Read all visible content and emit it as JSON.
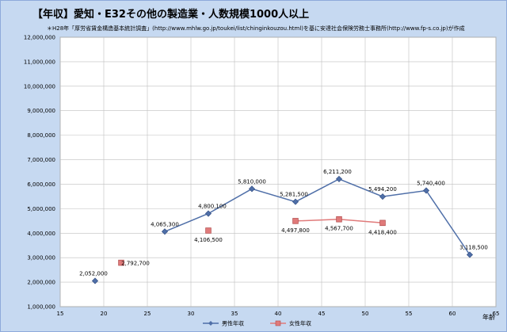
{
  "chart_data": {
    "type": "scatter",
    "title": "【年収】愛知・E32その他の製造業・人数規模1000人以上",
    "subtitle": "＊H28年「厚労省賃金構造基本統計調査」(http://www.mhlw.go.jp/toukei/list/chinginkouzou.html)を基に安達社会保険労務士事務所(http://www.fp-s.co.jp)が作成",
    "xlabel": "年齢",
    "ylabel": "",
    "xlim": [
      15,
      65
    ],
    "ylim": [
      1000000,
      12000000
    ],
    "x_ticks": [
      "15",
      "20",
      "25",
      "30",
      "35",
      "40",
      "45",
      "50",
      "55",
      "60",
      "65"
    ],
    "y_ticks": [
      "1,000,000",
      "2,000,000",
      "3,000,000",
      "4,000,000",
      "5,000,000",
      "6,000,000",
      "7,000,000",
      "8,000,000",
      "9,000,000",
      "10,000,000",
      "11,000,000",
      "12,000,000"
    ],
    "grid": true,
    "legend_position": "bottom",
    "series": [
      {
        "name": "男性年収",
        "color": "#4f6fa8",
        "marker": "diamond",
        "segments": [
          [
            {
              "x": 19,
              "y": 2052000,
              "label": "2,052,000"
            }
          ],
          [
            {
              "x": 27,
              "y": 4065300,
              "label": "4,065,300"
            },
            {
              "x": 32,
              "y": 4800100,
              "label": "4,800,100"
            },
            {
              "x": 37,
              "y": 5810000,
              "label": "5,810,000"
            },
            {
              "x": 42,
              "y": 5281500,
              "label": "5,281,500"
            },
            {
              "x": 47,
              "y": 6211200,
              "label": "6,211,200"
            },
            {
              "x": 52,
              "y": 5494200,
              "label": "5,494,200"
            },
            {
              "x": 57,
              "y": 5740400,
              "label": "5,740,400"
            },
            {
              "x": 62,
              "y": 3118500,
              "label": "3,118,500"
            }
          ]
        ]
      },
      {
        "name": "女性年収",
        "color": "#e07a7a",
        "marker": "square",
        "segments": [
          [
            {
              "x": 22,
              "y": 2792700,
              "label": "2,792,700"
            }
          ],
          [
            {
              "x": 32,
              "y": 4106500,
              "label": "4,106,500"
            }
          ],
          [
            {
              "x": 42,
              "y": 4497800,
              "label": "4,497,800"
            },
            {
              "x": 47,
              "y": 4567700,
              "label": "4,567,700"
            },
            {
              "x": 52,
              "y": 4418400,
              "label": "4,418,400"
            }
          ]
        ]
      }
    ]
  }
}
